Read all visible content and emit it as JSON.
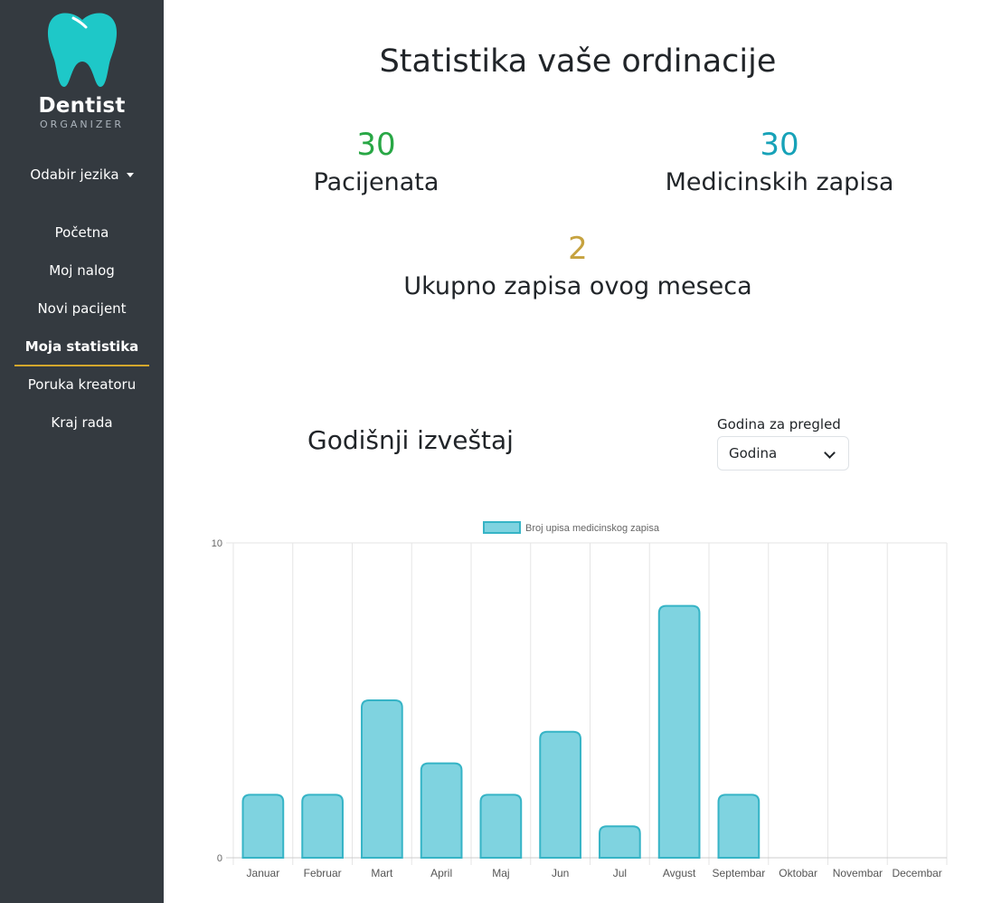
{
  "app": {
    "brand_title": "Dentist",
    "brand_subtitle": "ORGANIZER"
  },
  "sidebar": {
    "language_label": "Odabir jezika",
    "items": [
      {
        "label": "Početna",
        "active": false
      },
      {
        "label": "Moj nalog",
        "active": false
      },
      {
        "label": "Novi pacijent",
        "active": false
      },
      {
        "label": "Moja statistika",
        "active": true
      },
      {
        "label": "Poruka kreatoru",
        "active": false
      },
      {
        "label": "Kraj rada",
        "active": false
      }
    ]
  },
  "main": {
    "title": "Statistika vaše ordinacije",
    "stats": {
      "patients": {
        "value": "30",
        "label": "Pacijenata",
        "color": "#28a745"
      },
      "records": {
        "value": "30",
        "label": "Medicinskih zapisa",
        "color": "#17a2b8"
      },
      "month": {
        "value": "2",
        "label": "Ukupno zapisa ovog meseca",
        "color": "#c6a23f"
      }
    },
    "annual_report_title": "Godišnji izveštaj",
    "year_select": {
      "label": "Godina za pregled",
      "value": "Godina"
    }
  },
  "colors": {
    "sidebar_bg": "#343a40",
    "active_underline": "#d4a72c",
    "tooth": "#1ec8c8",
    "bar_fill": "#7fd3e0",
    "bar_border": "#36b4c6"
  },
  "chart_data": {
    "type": "bar",
    "categories": [
      "Januar",
      "Februar",
      "Mart",
      "April",
      "Maj",
      "Jun",
      "Jul",
      "Avgust",
      "Septembar",
      "Oktobar",
      "Novembar",
      "Decembar"
    ],
    "series": [
      {
        "name": "Broj upisa medicinskog zapisa",
        "values": [
          2,
          2,
          5,
          3,
          2,
          4,
          1,
          8,
          2,
          0,
          0,
          0
        ]
      }
    ],
    "ylim": [
      0,
      10
    ],
    "yticks": [
      0,
      10
    ],
    "grid": true,
    "legend": "top-center"
  }
}
